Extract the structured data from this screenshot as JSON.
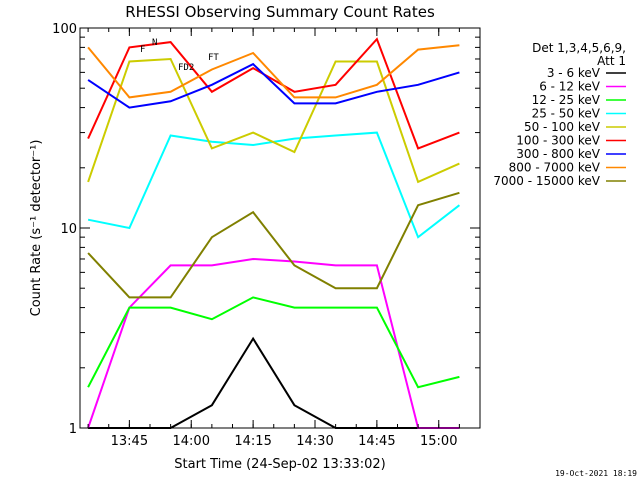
{
  "chart_data": {
    "type": "line",
    "title": "RHESSI Observing Summary Count Rates",
    "xlabel": "Start Time (24-Sep-02 13:33:02)",
    "ylabel": "Count Rate (s⁻¹ detector⁻¹)",
    "y_scale": "log",
    "ylim": [
      1,
      100
    ],
    "xlim": [
      "13:33:02",
      "15:10:00"
    ],
    "x_ticks": [
      "13:45",
      "14:00",
      "14:15",
      "14:30",
      "14:45",
      "15:00"
    ],
    "y_ticks": [
      "1",
      "10",
      "100"
    ],
    "legend_position": "right",
    "legend_header": [
      "Det 1,3,4,5,6,9,",
      "Att 1"
    ],
    "footer_date": "19-Oct-2021 18:19",
    "flag_labels": [
      "N",
      "F",
      "FT",
      "FD2"
    ],
    "series": [
      {
        "name": "3 - 6 keV",
        "color": "#000000",
        "x": [
          "13:35",
          "13:45",
          "13:55",
          "14:05",
          "14:15",
          "14:25",
          "14:35",
          "14:45",
          "14:55",
          "15:05"
        ],
        "y": [
          1,
          1,
          1,
          1.3,
          2.8,
          1.3,
          1,
          1,
          1,
          1
        ]
      },
      {
        "name": "6 - 12 keV",
        "color": "#ff00ff",
        "x": [
          "13:35",
          "13:45",
          "13:55",
          "14:05",
          "14:15",
          "14:25",
          "14:35",
          "14:45",
          "14:55",
          "15:05"
        ],
        "y": [
          1,
          4,
          6.5,
          6.5,
          7.0,
          6.8,
          6.5,
          6.5,
          1,
          1
        ]
      },
      {
        "name": "12 - 25 keV",
        "color": "#00ff00",
        "x": [
          "13:35",
          "13:45",
          "13:55",
          "14:05",
          "14:15",
          "14:25",
          "14:35",
          "14:45",
          "14:55",
          "15:05"
        ],
        "y": [
          1.6,
          4,
          4,
          3.5,
          4.5,
          4,
          4,
          4,
          1.6,
          1.8
        ]
      },
      {
        "name": "25 - 50 keV",
        "color": "#00ffff",
        "x": [
          "13:35",
          "13:45",
          "13:55",
          "14:05",
          "14:15",
          "14:25",
          "14:35",
          "14:45",
          "14:55",
          "15:05"
        ],
        "y": [
          11,
          10,
          29,
          27,
          26,
          28,
          29,
          30,
          9,
          13
        ]
      },
      {
        "name": "50 - 100 keV",
        "color": "#cccc00",
        "x": [
          "13:35",
          "13:45",
          "13:55",
          "14:05",
          "14:15",
          "14:25",
          "14:35",
          "14:45",
          "14:55",
          "15:05"
        ],
        "y": [
          17,
          68,
          70,
          25,
          30,
          24,
          68,
          68,
          17,
          21
        ]
      },
      {
        "name": "100 - 300 keV",
        "color": "#ff0000",
        "x": [
          "13:35",
          "13:45",
          "13:55",
          "14:05",
          "14:15",
          "14:25",
          "14:35",
          "14:45",
          "14:55",
          "15:05"
        ],
        "y": [
          28,
          80,
          85,
          48,
          63,
          48,
          52,
          88,
          25,
          30
        ]
      },
      {
        "name": "300 - 800 keV",
        "color": "#0000ff",
        "x": [
          "13:35",
          "13:45",
          "13:55",
          "14:05",
          "14:15",
          "14:25",
          "14:35",
          "14:45",
          "14:55",
          "15:05"
        ],
        "y": [
          55,
          40,
          43,
          52,
          66,
          42,
          42,
          48,
          52,
          60
        ]
      },
      {
        "name": "800 - 7000 keV",
        "color": "#ff8800",
        "x": [
          "13:35",
          "13:45",
          "13:55",
          "14:05",
          "14:15",
          "14:25",
          "14:35",
          "14:45",
          "14:55",
          "15:05"
        ],
        "y": [
          80,
          45,
          48,
          62,
          75,
          45,
          45,
          52,
          78,
          82
        ]
      },
      {
        "name": "7000 - 15000 keV",
        "color": "#808000",
        "x": [
          "13:35",
          "13:45",
          "13:55",
          "14:05",
          "14:15",
          "14:25",
          "14:35",
          "14:45",
          "14:55",
          "15:05"
        ],
        "y": [
          7.5,
          4.5,
          4.5,
          9,
          12,
          6.5,
          5,
          5,
          13,
          15
        ]
      }
    ]
  }
}
